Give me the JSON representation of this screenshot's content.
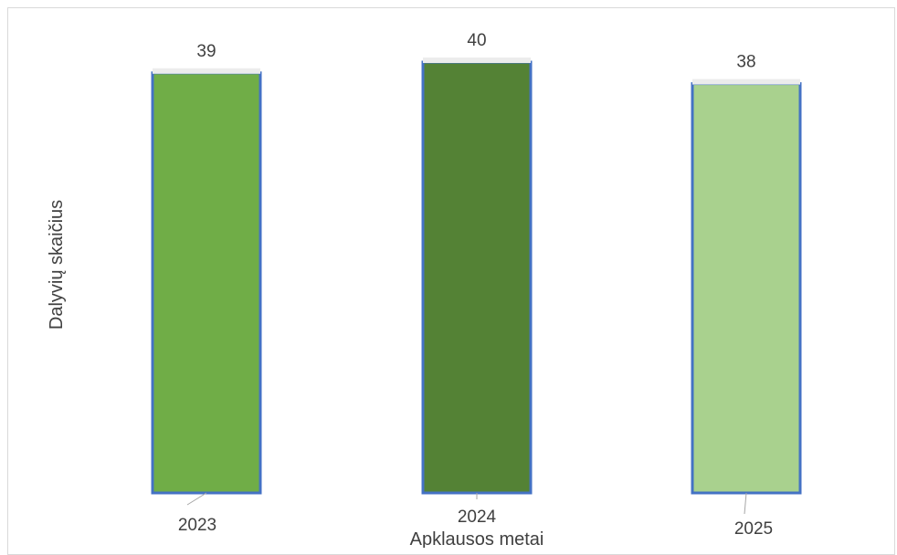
{
  "chart_data": {
    "type": "bar",
    "categories": [
      "2023",
      "2024",
      "2025"
    ],
    "values": [
      39,
      40,
      38
    ],
    "title": "",
    "xlabel": "Apklausos metai",
    "ylabel": "Dalyvių skaičius",
    "grid": false,
    "legend": "none",
    "colors": [
      "#70ad47",
      "#548235",
      "#a9d18e"
    ],
    "border_color": "#4472c4",
    "cap_color": "#ececec"
  }
}
